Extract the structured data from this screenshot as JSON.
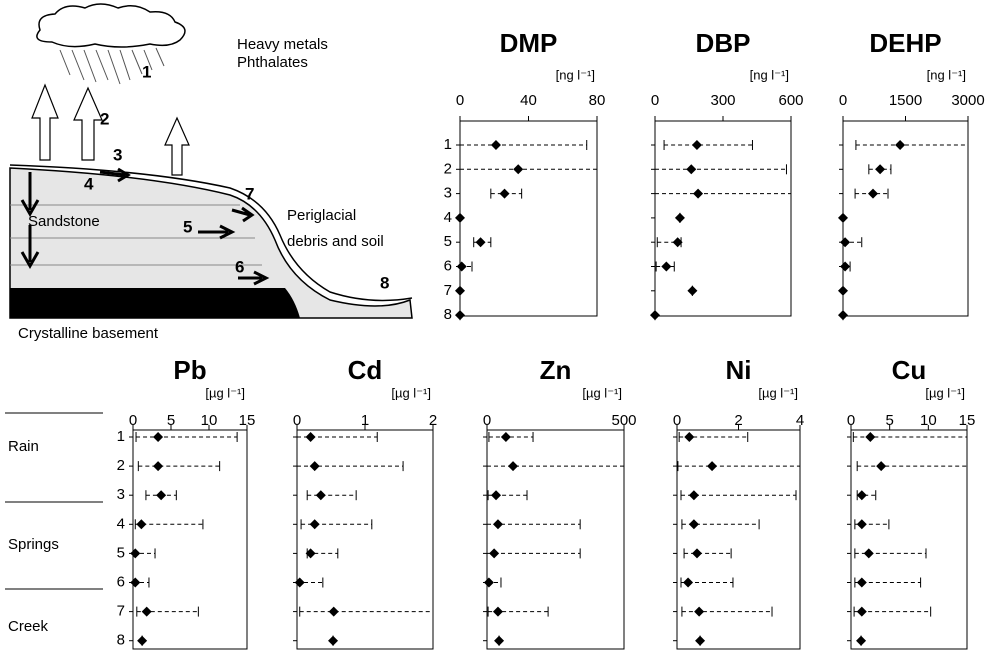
{
  "diagram": {
    "texts": [
      "Heavy metals",
      "Phthalates",
      "1",
      "2",
      "3",
      "4",
      "7",
      "Sandstone",
      "5",
      "Periglacial",
      "debris and soil",
      "6",
      "8",
      "Crystalline basement"
    ]
  },
  "row_groups": [
    "Rain",
    "Springs",
    "Creek"
  ],
  "chart_data": [
    {
      "type": "dot",
      "title": "DMP",
      "unit": "[ng l⁻¹]",
      "color": "#000000",
      "categories": [
        "1",
        "2",
        "3",
        "4",
        "5",
        "6",
        "7",
        "8"
      ],
      "values": [
        21,
        34,
        26,
        0,
        12,
        1,
        0,
        0
      ],
      "low": [
        0,
        0,
        18,
        0,
        8,
        0,
        0,
        0
      ],
      "high": [
        74,
        80,
        36,
        0,
        18,
        7,
        0,
        0
      ],
      "xlim": [
        0,
        80
      ],
      "xticks": [
        0,
        40,
        80
      ]
    },
    {
      "type": "dot",
      "title": "DBP",
      "unit": "[ng l⁻¹]",
      "color": "#000000",
      "values": [
        185,
        160,
        190,
        110,
        100,
        50,
        165,
        0
      ],
      "low": [
        40,
        0,
        0,
        110,
        10,
        5,
        165,
        0
      ],
      "high": [
        430,
        580,
        600,
        110,
        115,
        85,
        165,
        0
      ],
      "xlim": [
        0,
        600
      ],
      "xticks": [
        0,
        300,
        600
      ]
    },
    {
      "type": "dot",
      "title": "DEHP",
      "unit": "[ng l⁻¹]",
      "color": "#000000",
      "values": [
        1370,
        890,
        720,
        0,
        50,
        50,
        0,
        0
      ],
      "low": [
        310,
        620,
        290,
        0,
        0,
        0,
        0,
        0
      ],
      "high": [
        3000,
        1150,
        1080,
        0,
        450,
        170,
        0,
        0
      ],
      "xlim": [
        0,
        3000
      ],
      "xticks": [
        0,
        1500,
        3000
      ]
    },
    {
      "type": "dot",
      "title": "Pb",
      "unit": "[µg l⁻¹]",
      "color": "#000000",
      "categories": [
        "1",
        "2",
        "3",
        "4",
        "5",
        "6",
        "7",
        "8"
      ],
      "values": [
        3.3,
        3.3,
        3.7,
        1.1,
        0.3,
        0.3,
        1.8,
        1.2
      ],
      "low": [
        0.4,
        0.7,
        1.7,
        0.3,
        0,
        0,
        0.5,
        1.2
      ],
      "high": [
        13.7,
        11.4,
        5.7,
        9.2,
        2.9,
        2.1,
        8.6,
        1.2
      ],
      "xlim": [
        0,
        15
      ],
      "xticks": [
        0,
        5,
        10,
        15
      ]
    },
    {
      "type": "dot",
      "title": "Cd",
      "unit": "[µg l⁻¹]",
      "color": "#000000",
      "values": [
        0.2,
        0.26,
        0.35,
        0.26,
        0.2,
        0.04,
        0.54,
        0.53
      ],
      "low": [
        0,
        0,
        0.15,
        0.06,
        0.15,
        0,
        0.04,
        0.53
      ],
      "high": [
        1.18,
        1.56,
        0.87,
        1.1,
        0.6,
        0.38,
        2,
        0.53
      ],
      "xlim": [
        0,
        2
      ],
      "xticks": [
        0,
        1,
        2
      ]
    },
    {
      "type": "dot",
      "title": "Zn",
      "unit": "[µg l⁻¹]",
      "color": "#000000",
      "values": [
        69,
        95,
        33,
        40,
        26,
        7,
        40,
        44
      ],
      "low": [
        7,
        0,
        4,
        0,
        0,
        0,
        4,
        44
      ],
      "high": [
        168,
        500,
        146,
        340,
        340,
        51,
        223,
        44
      ],
      "xlim": [
        0,
        500
      ],
      "xticks": [
        0,
        500
      ]
    },
    {
      "type": "dot",
      "title": "Ni",
      "unit": "[µg l⁻¹]",
      "color": "#000000",
      "values": [
        0.4,
        1.14,
        0.55,
        0.55,
        0.65,
        0.36,
        0.72,
        0.75
      ],
      "low": [
        0.07,
        0.03,
        0.13,
        0.16,
        0.23,
        0.13,
        0.16,
        0.75
      ],
      "high": [
        2.3,
        4,
        3.87,
        2.67,
        1.76,
        1.82,
        3.09,
        0.75
      ],
      "xlim": [
        0,
        4
      ],
      "xticks": [
        0,
        2,
        4
      ]
    },
    {
      "type": "dot",
      "title": "Cu",
      "unit": "[µg l⁻¹]",
      "color": "#000000",
      "values": [
        2.5,
        3.9,
        1.4,
        1.4,
        2.3,
        1.4,
        1.4,
        1.3
      ],
      "low": [
        0.3,
        0.8,
        0.8,
        0.5,
        0.5,
        0.5,
        0.4,
        1.3
      ],
      "high": [
        15,
        15,
        3.2,
        4.9,
        9.7,
        9,
        10.3,
        1.3
      ],
      "xlim": [
        0,
        15
      ],
      "xticks": [
        0,
        5,
        10,
        15
      ]
    }
  ]
}
